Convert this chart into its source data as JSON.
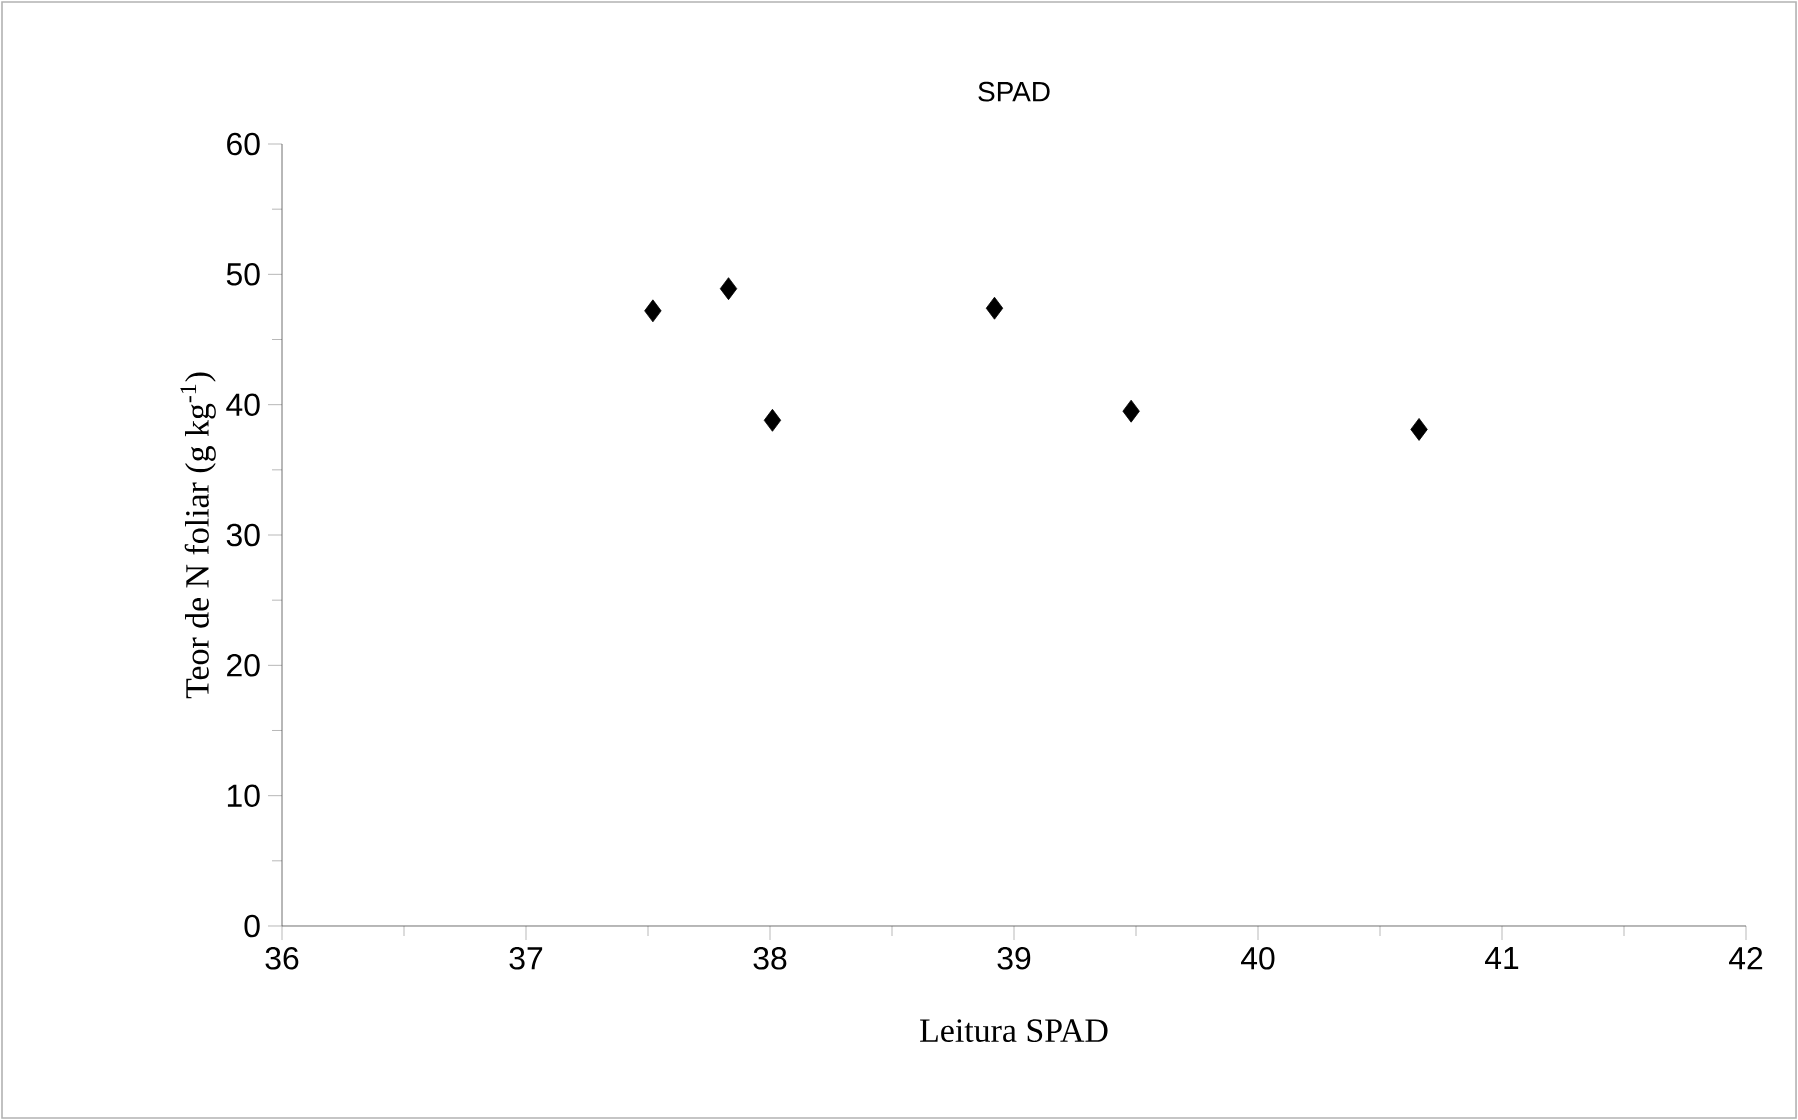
{
  "chart_data": {
    "type": "scatter",
    "title": "SPAD",
    "xlabel": "Leitura SPAD",
    "ylabel": "Teor de N foliar (g kg$^{-1}$)",
    "x": [
      37.52,
      37.83,
      38.01,
      38.92,
      39.48,
      40.66
    ],
    "values": [
      47.2,
      48.9,
      38.8,
      47.4,
      39.5,
      38.1
    ],
    "color": "#000000",
    "marker": "diamond",
    "xlim": [
      36,
      42
    ],
    "xticks": [
      36,
      37,
      38,
      39,
      40,
      41,
      42
    ],
    "ylim": [
      0,
      60
    ],
    "yticks": [
      0,
      10,
      20,
      30,
      40,
      50,
      60
    ],
    "grid": false
  }
}
